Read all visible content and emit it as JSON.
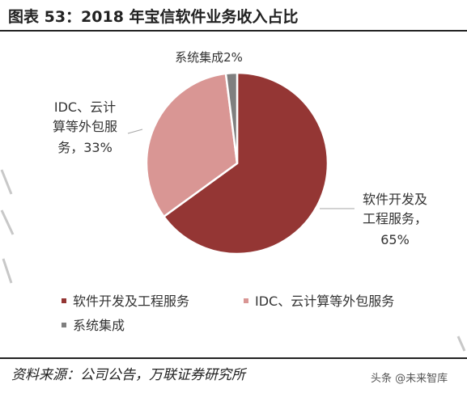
{
  "title": "图表 53：2018 年宝信软件业务收入占比",
  "chart_data": {
    "type": "pie",
    "slices": [
      {
        "name": "软件开发及工程服务",
        "value": 65,
        "percent_label": "65%",
        "color": "#943634",
        "label_lines": [
          "软件开发及",
          "工程服务，",
          "65%"
        ]
      },
      {
        "name": "IDC、云计算等外包服务",
        "value": 33,
        "percent_label": "33%",
        "color": "#d99694",
        "label_lines": [
          "IDC、云计",
          "算等外包服",
          "务，33%"
        ]
      },
      {
        "name": "系统集成",
        "value": 2,
        "percent_label": "2%",
        "color": "#7f7f7f",
        "label_lines": [
          "系统集成2%"
        ]
      }
    ],
    "legend": {
      "position": "bottom-left"
    }
  },
  "source": "资料来源：公司公告，万联证券研究所",
  "watermark": "头条 @未来智库"
}
